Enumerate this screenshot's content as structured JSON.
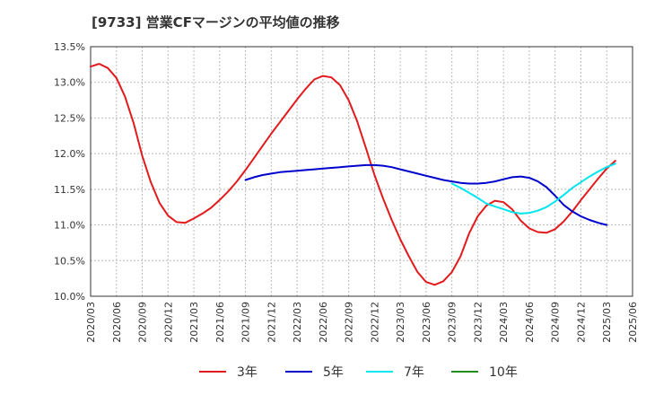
{
  "chart_data": {
    "type": "line",
    "title": "[9733]  営業CFマージンの平均値の推移",
    "xlabel": "",
    "ylabel": "",
    "ylim": [
      10.0,
      13.5
    ],
    "yticks": [
      "10.0%",
      "10.5%",
      "11.0%",
      "11.5%",
      "12.0%",
      "12.5%",
      "13.0%",
      "13.5%"
    ],
    "yticks_values": [
      10.0,
      10.5,
      11.0,
      11.5,
      12.0,
      12.5,
      13.0,
      13.5
    ],
    "xticks": [
      "2020/03",
      "2020/06",
      "2020/09",
      "2020/12",
      "2021/03",
      "2021/06",
      "2021/09",
      "2021/12",
      "2022/03",
      "2022/06",
      "2022/09",
      "2022/12",
      "2023/03",
      "2023/06",
      "2023/09",
      "2023/12",
      "2024/03",
      "2024/06",
      "2024/09",
      "2024/12",
      "2025/03",
      "2025/06"
    ],
    "grid": true,
    "legend_position": "bottom",
    "series": [
      {
        "name": "3年",
        "color": "#e31a1c",
        "start_index": 0,
        "values": [
          13.22,
          13.26,
          13.2,
          13.06,
          12.8,
          12.43,
          11.97,
          11.6,
          11.31,
          11.13,
          11.04,
          11.03,
          11.09,
          11.16,
          11.24,
          11.35,
          11.47,
          11.61,
          11.77,
          11.94,
          12.11,
          12.28,
          12.44,
          12.6,
          12.76,
          12.91,
          13.04,
          13.09,
          13.07,
          12.96,
          12.75,
          12.45,
          12.08,
          11.7,
          11.37,
          11.07,
          10.8,
          10.56,
          10.34,
          10.2,
          10.16,
          10.21,
          10.34,
          10.56,
          10.88,
          11.12,
          11.27,
          11.34,
          11.32,
          11.22,
          11.06,
          10.95,
          10.9,
          10.89,
          10.94,
          11.05,
          11.19,
          11.35,
          11.5,
          11.65,
          11.79,
          11.9
        ]
      },
      {
        "name": "5年",
        "color": "#0000cc",
        "start_index": 18,
        "values": [
          11.63,
          11.67,
          11.7,
          11.72,
          11.74,
          11.75,
          11.76,
          11.77,
          11.78,
          11.79,
          11.8,
          11.81,
          11.82,
          11.83,
          11.84,
          11.84,
          11.83,
          11.81,
          11.78,
          11.75,
          11.72,
          11.69,
          11.66,
          11.63,
          11.61,
          11.59,
          11.58,
          11.58,
          11.59,
          11.61,
          11.64,
          11.67,
          11.68,
          11.66,
          11.61,
          11.53,
          11.41,
          11.28,
          11.19,
          11.12,
          11.07,
          11.03,
          11.0
        ]
      },
      {
        "name": "7年",
        "color": "#00e5ee",
        "start_index": 42,
        "values": [
          11.58,
          11.52,
          11.45,
          11.38,
          11.3,
          11.26,
          11.22,
          11.18,
          11.16,
          11.17,
          11.2,
          11.25,
          11.33,
          11.42,
          11.52,
          11.6,
          11.68,
          11.75,
          11.81,
          11.86
        ]
      },
      {
        "name": "10年",
        "color": "#228b22",
        "start_index": 0,
        "values": []
      }
    ]
  }
}
